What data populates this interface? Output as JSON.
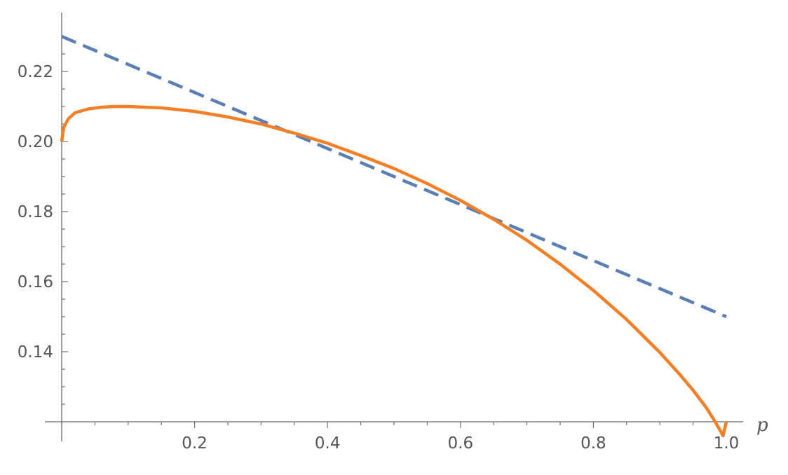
{
  "chart_data": {
    "type": "line",
    "title": "",
    "xlabel": "p",
    "ylabel": "",
    "xlim": [
      0,
      1.05
    ],
    "ylim": [
      0.12,
      0.235
    ],
    "grid": false,
    "legend": "none",
    "x_ticks": [
      {
        "value": 0.2,
        "label": "0.2"
      },
      {
        "value": 0.4,
        "label": "0.4"
      },
      {
        "value": 0.6,
        "label": "0.6"
      },
      {
        "value": 0.8,
        "label": "0.8"
      },
      {
        "value": 1.0,
        "label": "1.0"
      }
    ],
    "x_minor_step": 0.05,
    "y_ticks": [
      {
        "value": 0.14,
        "label": "0.14"
      },
      {
        "value": 0.16,
        "label": "0.16"
      },
      {
        "value": 0.18,
        "label": "0.18"
      },
      {
        "value": 0.2,
        "label": "0.20"
      },
      {
        "value": 0.22,
        "label": "0.22"
      }
    ],
    "y_minor_step": 0.005,
    "series": [
      {
        "style": "dashed",
        "color": "#5a7fb5",
        "x": [
          0.0,
          1.0
        ],
        "y": [
          0.23,
          0.15
        ]
      },
      {
        "style": "solid",
        "color": "#f47f24",
        "x": [
          0.0,
          0.003,
          0.01,
          0.02,
          0.04,
          0.06,
          0.08,
          0.1,
          0.15,
          0.2,
          0.25,
          0.3,
          0.35,
          0.4,
          0.45,
          0.5,
          0.55,
          0.6,
          0.65,
          0.7,
          0.75,
          0.8,
          0.85,
          0.9,
          0.93,
          0.95,
          0.97,
          0.98,
          0.99,
          0.995,
          1.0
        ],
        "y": [
          0.2,
          0.204,
          0.2065,
          0.2082,
          0.2093,
          0.2098,
          0.21,
          0.21,
          0.2096,
          0.2086,
          0.207,
          0.205,
          0.2024,
          0.1995,
          0.196,
          0.1923,
          0.188,
          0.1832,
          0.1778,
          0.1718,
          0.165,
          0.1575,
          0.1492,
          0.1398,
          0.1335,
          0.129,
          0.124,
          0.121,
          0.1178,
          0.116,
          0.12
        ]
      }
    ]
  },
  "colors": {
    "axis": "#666666",
    "text": "#555555"
  }
}
